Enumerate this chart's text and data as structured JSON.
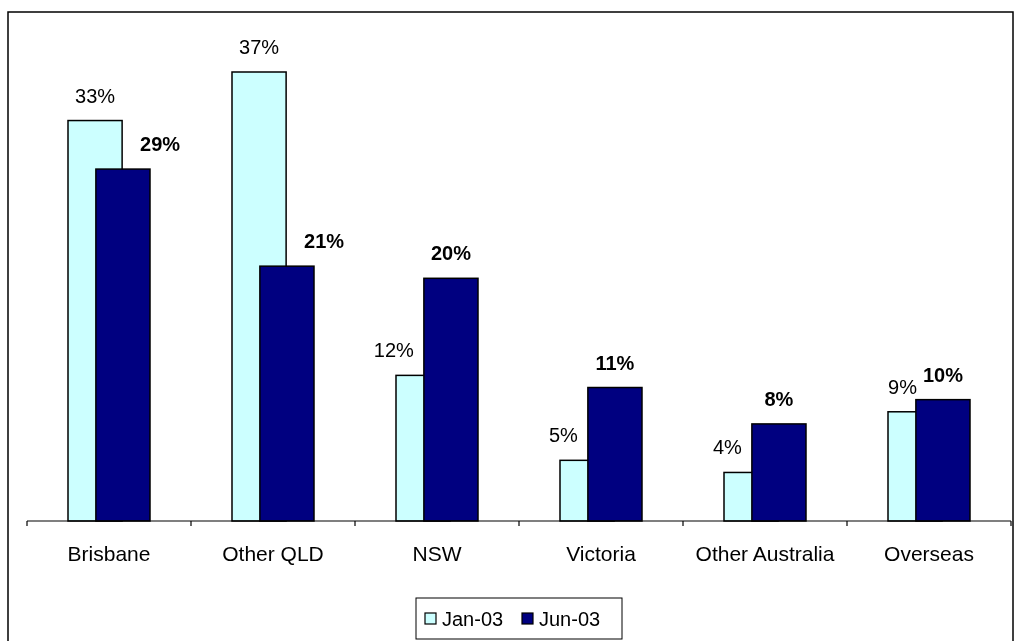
{
  "chart_data": {
    "type": "bar",
    "categories": [
      "Brisbane",
      "Other QLD",
      "NSW",
      "Victoria",
      "Other Australia",
      "Overseas"
    ],
    "series": [
      {
        "name": "Jan-03",
        "color": "#ccffff",
        "values": [
          33,
          37,
          12,
          5,
          4,
          9
        ],
        "value_labels": [
          "33%",
          "37%",
          "12%",
          "5%",
          "4%",
          "9%"
        ]
      },
      {
        "name": "Jun-03",
        "color": "#000080",
        "values": [
          29,
          21,
          20,
          11,
          8,
          10
        ],
        "value_labels": [
          "29%",
          "21%",
          "20%",
          "11%",
          "8%",
          "10%"
        ]
      }
    ],
    "legend": "bottom"
  }
}
